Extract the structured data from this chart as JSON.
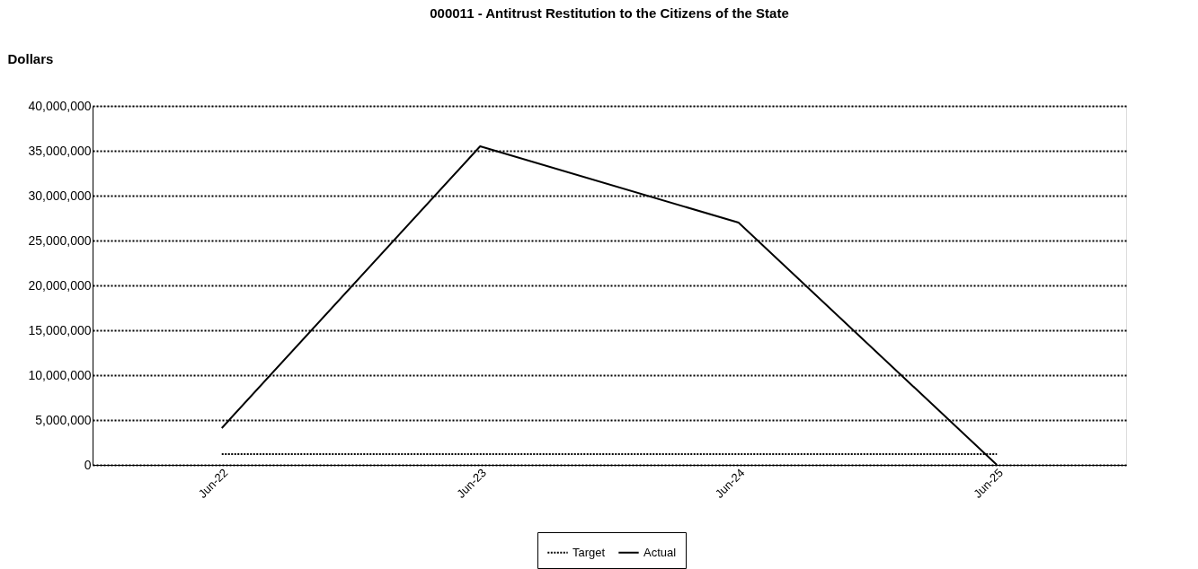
{
  "chart_data": {
    "type": "line",
    "title": "000011 - Antitrust Restitution to the Citizens of the State",
    "ylabel": "Dollars",
    "categories": [
      "Jun-22",
      "Jun-23",
      "Jun-24",
      "Jun-25"
    ],
    "series": [
      {
        "name": "Target",
        "color": "#000000",
        "line_style": "dotted",
        "values": [
          1200000,
          1200000,
          1200000,
          1200000
        ]
      },
      {
        "name": "Actual",
        "color": "#000000",
        "line_style": "solid",
        "values": [
          4100000,
          35500000,
          27000000,
          0
        ]
      }
    ],
    "ylim": [
      0,
      40000000
    ],
    "yticks": [
      0,
      {
        "value": 5000000,
        "label": "5,000,000"
      },
      {
        "value": 10000000,
        "label": "10,000,000"
      },
      {
        "value": 15000000,
        "label": "15,000,000"
      },
      {
        "value": 20000000,
        "label": "20,000,000"
      },
      {
        "value": 25000000,
        "label": "25,000,000"
      },
      {
        "value": 30000000,
        "label": "30,000,000"
      },
      {
        "value": 35000000,
        "label": "35,000,000"
      },
      {
        "value": 40000000,
        "label": "40,000,000"
      }
    ],
    "grid": "y",
    "legend": "bottom",
    "marker": "none"
  }
}
